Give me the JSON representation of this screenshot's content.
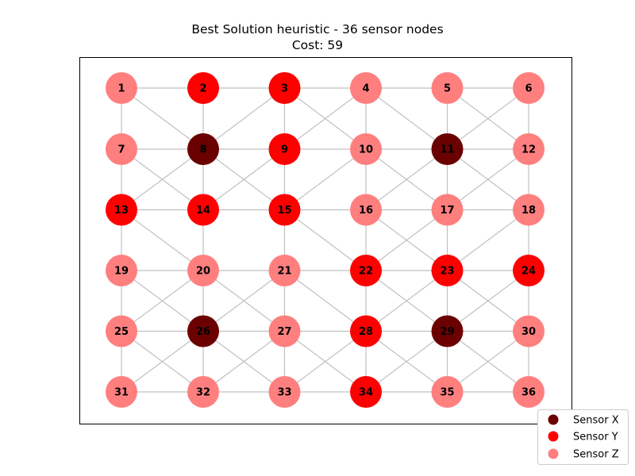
{
  "title": "Best Solution heuristic - 36 sensor nodes",
  "subtitle": "Cost: 59",
  "colors": {
    "sensor_x": "#6b0000",
    "sensor_y": "#ff0000",
    "sensor_z": "#ff7f7f",
    "edge": "#c0c0c0"
  },
  "legend": [
    {
      "key": "X",
      "label": "Sensor X"
    },
    {
      "key": "Y",
      "label": "Sensor Y"
    },
    {
      "key": "Z",
      "label": "Sensor Z"
    }
  ],
  "grid": {
    "rows": 6,
    "cols": 6
  },
  "nodes": [
    {
      "id": "1",
      "type": "Z"
    },
    {
      "id": "2",
      "type": "Y"
    },
    {
      "id": "3",
      "type": "Y"
    },
    {
      "id": "4",
      "type": "Z"
    },
    {
      "id": "5",
      "type": "Z"
    },
    {
      "id": "6",
      "type": "Z"
    },
    {
      "id": "7",
      "type": "Z"
    },
    {
      "id": "8",
      "type": "X"
    },
    {
      "id": "9",
      "type": "Y"
    },
    {
      "id": "10",
      "type": "Z"
    },
    {
      "id": "11",
      "type": "X"
    },
    {
      "id": "12",
      "type": "Z"
    },
    {
      "id": "13",
      "type": "Y"
    },
    {
      "id": "14",
      "type": "Y"
    },
    {
      "id": "15",
      "type": "Y"
    },
    {
      "id": "16",
      "type": "Z"
    },
    {
      "id": "17",
      "type": "Z"
    },
    {
      "id": "18",
      "type": "Z"
    },
    {
      "id": "19",
      "type": "Z"
    },
    {
      "id": "20",
      "type": "Z"
    },
    {
      "id": "21",
      "type": "Z"
    },
    {
      "id": "22",
      "type": "Y"
    },
    {
      "id": "23",
      "type": "Y"
    },
    {
      "id": "24",
      "type": "Y"
    },
    {
      "id": "25",
      "type": "Z"
    },
    {
      "id": "26",
      "type": "X"
    },
    {
      "id": "27",
      "type": "Z"
    },
    {
      "id": "28",
      "type": "Y"
    },
    {
      "id": "29",
      "type": "X"
    },
    {
      "id": "30",
      "type": "Z"
    },
    {
      "id": "31",
      "type": "Z"
    },
    {
      "id": "32",
      "type": "Z"
    },
    {
      "id": "33",
      "type": "Z"
    },
    {
      "id": "34",
      "type": "Y"
    },
    {
      "id": "35",
      "type": "Z"
    },
    {
      "id": "36",
      "type": "Z"
    }
  ],
  "edges": [
    [
      "1",
      "2"
    ],
    [
      "2",
      "3"
    ],
    [
      "3",
      "4"
    ],
    [
      "4",
      "5"
    ],
    [
      "5",
      "6"
    ],
    [
      "7",
      "8"
    ],
    [
      "8",
      "9"
    ],
    [
      "9",
      "10"
    ],
    [
      "10",
      "11"
    ],
    [
      "11",
      "12"
    ],
    [
      "13",
      "14"
    ],
    [
      "14",
      "15"
    ],
    [
      "15",
      "16"
    ],
    [
      "16",
      "17"
    ],
    [
      "17",
      "18"
    ],
    [
      "19",
      "20"
    ],
    [
      "20",
      "21"
    ],
    [
      "21",
      "22"
    ],
    [
      "22",
      "23"
    ],
    [
      "23",
      "24"
    ],
    [
      "25",
      "26"
    ],
    [
      "26",
      "27"
    ],
    [
      "27",
      "28"
    ],
    [
      "28",
      "29"
    ],
    [
      "29",
      "30"
    ],
    [
      "31",
      "32"
    ],
    [
      "32",
      "33"
    ],
    [
      "33",
      "34"
    ],
    [
      "34",
      "35"
    ],
    [
      "35",
      "36"
    ],
    [
      "1",
      "7"
    ],
    [
      "7",
      "13"
    ],
    [
      "13",
      "19"
    ],
    [
      "19",
      "25"
    ],
    [
      "25",
      "31"
    ],
    [
      "2",
      "8"
    ],
    [
      "8",
      "14"
    ],
    [
      "14",
      "20"
    ],
    [
      "20",
      "26"
    ],
    [
      "26",
      "32"
    ],
    [
      "3",
      "9"
    ],
    [
      "9",
      "15"
    ],
    [
      "15",
      "21"
    ],
    [
      "21",
      "27"
    ],
    [
      "27",
      "33"
    ],
    [
      "4",
      "10"
    ],
    [
      "10",
      "16"
    ],
    [
      "16",
      "22"
    ],
    [
      "22",
      "28"
    ],
    [
      "28",
      "34"
    ],
    [
      "5",
      "11"
    ],
    [
      "11",
      "17"
    ],
    [
      "17",
      "23"
    ],
    [
      "23",
      "29"
    ],
    [
      "29",
      "35"
    ],
    [
      "6",
      "12"
    ],
    [
      "12",
      "18"
    ],
    [
      "18",
      "24"
    ],
    [
      "24",
      "30"
    ],
    [
      "30",
      "36"
    ],
    [
      "1",
      "8"
    ],
    [
      "3",
      "8"
    ],
    [
      "3",
      "10"
    ],
    [
      "4",
      "9"
    ],
    [
      "4",
      "11"
    ],
    [
      "5",
      "12"
    ],
    [
      "6",
      "11"
    ],
    [
      "7",
      "14"
    ],
    [
      "8",
      "13"
    ],
    [
      "8",
      "15"
    ],
    [
      "9",
      "14"
    ],
    [
      "10",
      "15"
    ],
    [
      "10",
      "17"
    ],
    [
      "11",
      "16"
    ],
    [
      "11",
      "18"
    ],
    [
      "12",
      "17"
    ],
    [
      "13",
      "20"
    ],
    [
      "15",
      "22"
    ],
    [
      "16",
      "23"
    ],
    [
      "17",
      "22"
    ],
    [
      "18",
      "23"
    ],
    [
      "19",
      "26"
    ],
    [
      "20",
      "25"
    ],
    [
      "20",
      "27"
    ],
    [
      "21",
      "26"
    ],
    [
      "21",
      "28"
    ],
    [
      "22",
      "29"
    ],
    [
      "23",
      "28"
    ],
    [
      "24",
      "29"
    ],
    [
      "23",
      "30"
    ],
    [
      "25",
      "32"
    ],
    [
      "26",
      "31"
    ],
    [
      "26",
      "33"
    ],
    [
      "27",
      "32"
    ],
    [
      "27",
      "34"
    ],
    [
      "28",
      "33"
    ],
    [
      "28",
      "35"
    ],
    [
      "29",
      "34"
    ],
    [
      "29",
      "36"
    ],
    [
      "30",
      "35"
    ]
  ]
}
